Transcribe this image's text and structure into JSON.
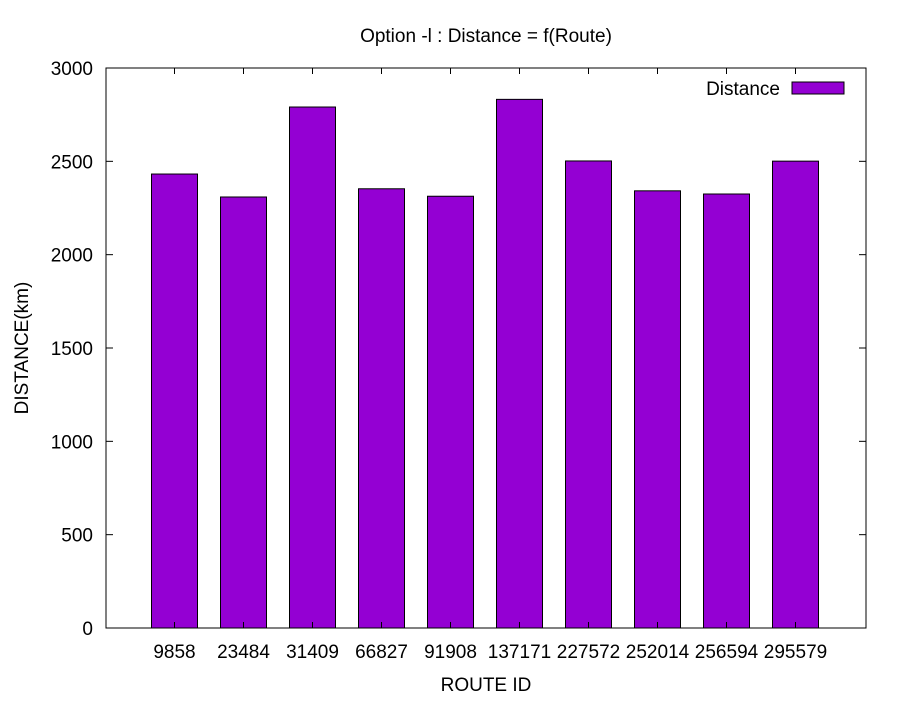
{
  "chart_data": {
    "type": "bar",
    "title": "Option -l : Distance = f(Route)",
    "xlabel": "ROUTE ID",
    "ylabel": "DISTANCE(km)",
    "ylim": [
      0,
      3000
    ],
    "yticks": [
      0,
      500,
      1000,
      1500,
      2000,
      2500,
      3000
    ],
    "categories": [
      "9858",
      "23484",
      "31409",
      "66827",
      "91908",
      "137171",
      "227572",
      "252014",
      "256594",
      "295579"
    ],
    "series": [
      {
        "name": "Distance",
        "color": "#9400d3",
        "values": [
          2432,
          2309,
          2791,
          2353,
          2313,
          2832,
          2502,
          2342,
          2325,
          2501
        ]
      }
    ],
    "legend": "top-right",
    "grid": false
  }
}
